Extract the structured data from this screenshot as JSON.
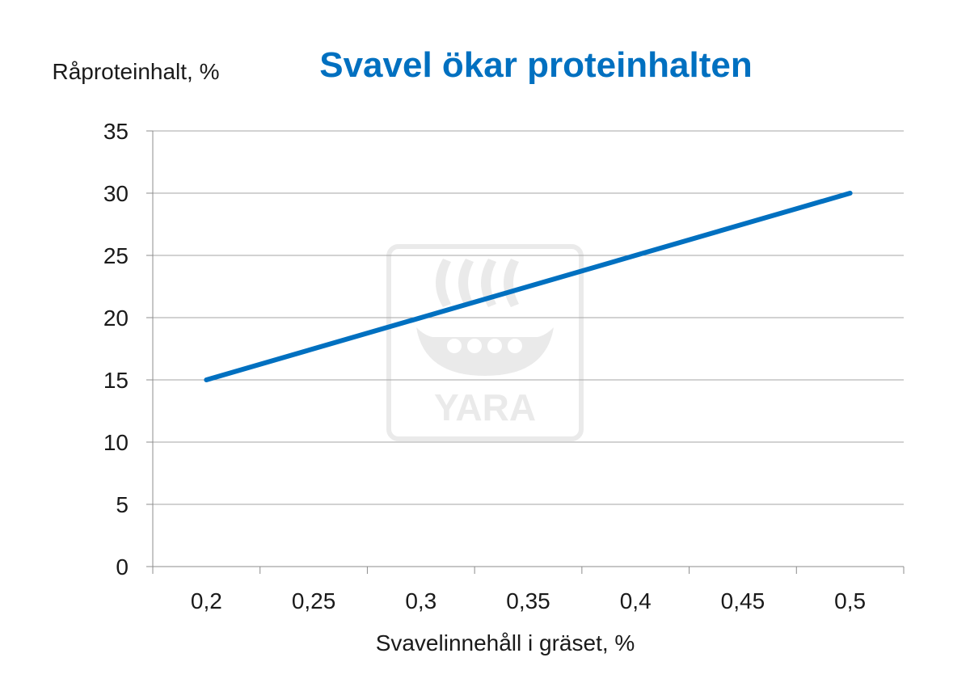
{
  "chart_data": {
    "type": "line",
    "title": "Svavel ökar proteinhalten",
    "xlabel": "Svavelinnehåll i gräset, %",
    "ylabel": "Råproteinhalt, %",
    "categories": [
      "0,2",
      "0,25",
      "0,3",
      "0,35",
      "0,4",
      "0,45",
      "0,5"
    ],
    "x": [
      0.2,
      0.5
    ],
    "series": [
      {
        "values": [
          15,
          30
        ]
      }
    ],
    "xlim": [
      0.2,
      0.5
    ],
    "ylim": [
      0,
      35
    ],
    "yticks": [
      "0",
      "5",
      "10",
      "15",
      "20",
      "25",
      "30",
      "35"
    ],
    "grid": "horizontal",
    "line_color": "#0070c0",
    "title_color": "#0070c0"
  },
  "watermark": {
    "text": "YARA",
    "icon": "yara-viking-ship-logo"
  }
}
